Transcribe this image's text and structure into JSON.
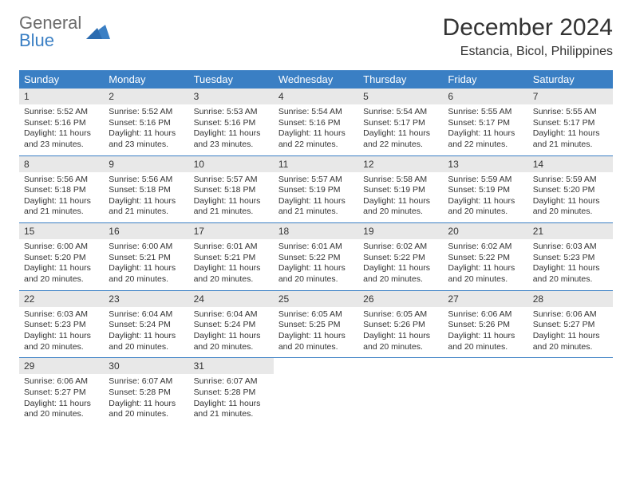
{
  "logo": {
    "top": "General",
    "bottom": "Blue"
  },
  "title": "December 2024",
  "location": "Estancia, Bicol, Philippines",
  "colors": {
    "header_bg": "#3a7fc4",
    "header_text": "#ffffff",
    "daynum_bg": "#e8e8e8",
    "body_text": "#333333",
    "logo_top": "#6b6b6b",
    "logo_bottom": "#3a7fc4",
    "page_bg": "#ffffff",
    "week_border": "#3a7fc4"
  },
  "fonts": {
    "title_size": 30,
    "location_size": 16,
    "dayheader_size": 13,
    "daynum_size": 12,
    "body_size": 10.5
  },
  "day_labels": [
    "Sunday",
    "Monday",
    "Tuesday",
    "Wednesday",
    "Thursday",
    "Friday",
    "Saturday"
  ],
  "weeks": [
    [
      {
        "num": "1",
        "sunrise": "Sunrise: 5:52 AM",
        "sunset": "Sunset: 5:16 PM",
        "daylight": "Daylight: 11 hours and 23 minutes."
      },
      {
        "num": "2",
        "sunrise": "Sunrise: 5:52 AM",
        "sunset": "Sunset: 5:16 PM",
        "daylight": "Daylight: 11 hours and 23 minutes."
      },
      {
        "num": "3",
        "sunrise": "Sunrise: 5:53 AM",
        "sunset": "Sunset: 5:16 PM",
        "daylight": "Daylight: 11 hours and 23 minutes."
      },
      {
        "num": "4",
        "sunrise": "Sunrise: 5:54 AM",
        "sunset": "Sunset: 5:16 PM",
        "daylight": "Daylight: 11 hours and 22 minutes."
      },
      {
        "num": "5",
        "sunrise": "Sunrise: 5:54 AM",
        "sunset": "Sunset: 5:17 PM",
        "daylight": "Daylight: 11 hours and 22 minutes."
      },
      {
        "num": "6",
        "sunrise": "Sunrise: 5:55 AM",
        "sunset": "Sunset: 5:17 PM",
        "daylight": "Daylight: 11 hours and 22 minutes."
      },
      {
        "num": "7",
        "sunrise": "Sunrise: 5:55 AM",
        "sunset": "Sunset: 5:17 PM",
        "daylight": "Daylight: 11 hours and 21 minutes."
      }
    ],
    [
      {
        "num": "8",
        "sunrise": "Sunrise: 5:56 AM",
        "sunset": "Sunset: 5:18 PM",
        "daylight": "Daylight: 11 hours and 21 minutes."
      },
      {
        "num": "9",
        "sunrise": "Sunrise: 5:56 AM",
        "sunset": "Sunset: 5:18 PM",
        "daylight": "Daylight: 11 hours and 21 minutes."
      },
      {
        "num": "10",
        "sunrise": "Sunrise: 5:57 AM",
        "sunset": "Sunset: 5:18 PM",
        "daylight": "Daylight: 11 hours and 21 minutes."
      },
      {
        "num": "11",
        "sunrise": "Sunrise: 5:57 AM",
        "sunset": "Sunset: 5:19 PM",
        "daylight": "Daylight: 11 hours and 21 minutes."
      },
      {
        "num": "12",
        "sunrise": "Sunrise: 5:58 AM",
        "sunset": "Sunset: 5:19 PM",
        "daylight": "Daylight: 11 hours and 20 minutes."
      },
      {
        "num": "13",
        "sunrise": "Sunrise: 5:59 AM",
        "sunset": "Sunset: 5:19 PM",
        "daylight": "Daylight: 11 hours and 20 minutes."
      },
      {
        "num": "14",
        "sunrise": "Sunrise: 5:59 AM",
        "sunset": "Sunset: 5:20 PM",
        "daylight": "Daylight: 11 hours and 20 minutes."
      }
    ],
    [
      {
        "num": "15",
        "sunrise": "Sunrise: 6:00 AM",
        "sunset": "Sunset: 5:20 PM",
        "daylight": "Daylight: 11 hours and 20 minutes."
      },
      {
        "num": "16",
        "sunrise": "Sunrise: 6:00 AM",
        "sunset": "Sunset: 5:21 PM",
        "daylight": "Daylight: 11 hours and 20 minutes."
      },
      {
        "num": "17",
        "sunrise": "Sunrise: 6:01 AM",
        "sunset": "Sunset: 5:21 PM",
        "daylight": "Daylight: 11 hours and 20 minutes."
      },
      {
        "num": "18",
        "sunrise": "Sunrise: 6:01 AM",
        "sunset": "Sunset: 5:22 PM",
        "daylight": "Daylight: 11 hours and 20 minutes."
      },
      {
        "num": "19",
        "sunrise": "Sunrise: 6:02 AM",
        "sunset": "Sunset: 5:22 PM",
        "daylight": "Daylight: 11 hours and 20 minutes."
      },
      {
        "num": "20",
        "sunrise": "Sunrise: 6:02 AM",
        "sunset": "Sunset: 5:22 PM",
        "daylight": "Daylight: 11 hours and 20 minutes."
      },
      {
        "num": "21",
        "sunrise": "Sunrise: 6:03 AM",
        "sunset": "Sunset: 5:23 PM",
        "daylight": "Daylight: 11 hours and 20 minutes."
      }
    ],
    [
      {
        "num": "22",
        "sunrise": "Sunrise: 6:03 AM",
        "sunset": "Sunset: 5:23 PM",
        "daylight": "Daylight: 11 hours and 20 minutes."
      },
      {
        "num": "23",
        "sunrise": "Sunrise: 6:04 AM",
        "sunset": "Sunset: 5:24 PM",
        "daylight": "Daylight: 11 hours and 20 minutes."
      },
      {
        "num": "24",
        "sunrise": "Sunrise: 6:04 AM",
        "sunset": "Sunset: 5:24 PM",
        "daylight": "Daylight: 11 hours and 20 minutes."
      },
      {
        "num": "25",
        "sunrise": "Sunrise: 6:05 AM",
        "sunset": "Sunset: 5:25 PM",
        "daylight": "Daylight: 11 hours and 20 minutes."
      },
      {
        "num": "26",
        "sunrise": "Sunrise: 6:05 AM",
        "sunset": "Sunset: 5:26 PM",
        "daylight": "Daylight: 11 hours and 20 minutes."
      },
      {
        "num": "27",
        "sunrise": "Sunrise: 6:06 AM",
        "sunset": "Sunset: 5:26 PM",
        "daylight": "Daylight: 11 hours and 20 minutes."
      },
      {
        "num": "28",
        "sunrise": "Sunrise: 6:06 AM",
        "sunset": "Sunset: 5:27 PM",
        "daylight": "Daylight: 11 hours and 20 minutes."
      }
    ],
    [
      {
        "num": "29",
        "sunrise": "Sunrise: 6:06 AM",
        "sunset": "Sunset: 5:27 PM",
        "daylight": "Daylight: 11 hours and 20 minutes."
      },
      {
        "num": "30",
        "sunrise": "Sunrise: 6:07 AM",
        "sunset": "Sunset: 5:28 PM",
        "daylight": "Daylight: 11 hours and 20 minutes."
      },
      {
        "num": "31",
        "sunrise": "Sunrise: 6:07 AM",
        "sunset": "Sunset: 5:28 PM",
        "daylight": "Daylight: 11 hours and 21 minutes."
      },
      null,
      null,
      null,
      null
    ]
  ]
}
